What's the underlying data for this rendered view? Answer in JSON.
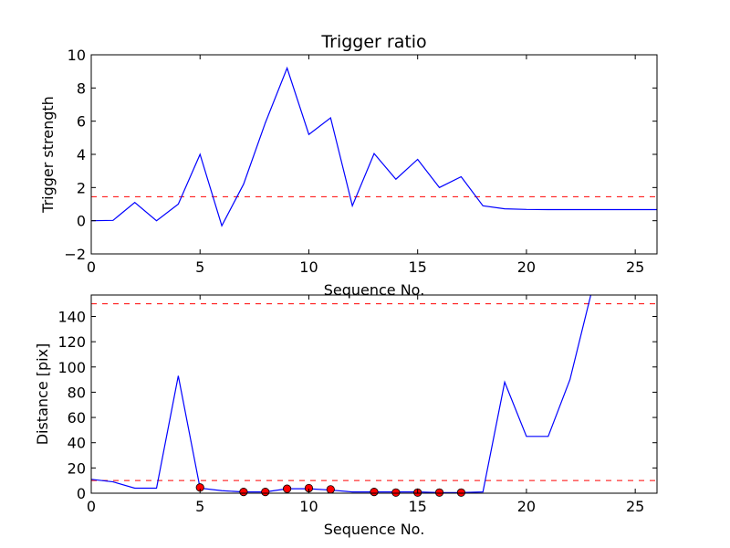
{
  "chart_data": [
    {
      "type": "line",
      "title": "Trigger ratio",
      "xlabel": "Sequence No.",
      "ylabel": "Trigger strength",
      "xlim": [
        0,
        26
      ],
      "ylim": [
        -2,
        10
      ],
      "xticks": [
        0,
        5,
        10,
        15,
        20,
        25
      ],
      "yticks": [
        -2,
        0,
        2,
        4,
        6,
        8,
        10
      ],
      "grid": false,
      "series": [
        {
          "color": "#0000ff",
          "style": "solid",
          "x": [
            0,
            1,
            2,
            3,
            4,
            5,
            6,
            7,
            8,
            9,
            10,
            11,
            12,
            13,
            14,
            15,
            16,
            17,
            18,
            19,
            20,
            21,
            22,
            23,
            24,
            25,
            26
          ],
          "y": [
            0.0,
            0.02,
            1.1,
            0.0,
            1.0,
            4.0,
            -0.3,
            2.2,
            5.9,
            9.2,
            5.2,
            6.2,
            0.9,
            4.05,
            2.5,
            3.7,
            2.0,
            2.65,
            0.9,
            0.72,
            0.68,
            0.67,
            0.67,
            0.67,
            0.67,
            0.67,
            0.67
          ]
        }
      ],
      "hlines": [
        {
          "y": 1.45,
          "color": "#ff0000",
          "style": "dashed"
        }
      ]
    },
    {
      "type": "line",
      "title": "",
      "xlabel": "Sequence No.",
      "ylabel": "Distance [pix]",
      "xlim": [
        0,
        26
      ],
      "ylim": [
        0,
        157
      ],
      "xticks": [
        0,
        5,
        10,
        15,
        20,
        25
      ],
      "yticks": [
        0,
        20,
        40,
        60,
        80,
        100,
        120,
        140
      ],
      "grid": false,
      "series": [
        {
          "color": "#0000ff",
          "style": "solid",
          "x": [
            0,
            1,
            2,
            3,
            4,
            5,
            6,
            7,
            8,
            9,
            10,
            11,
            12,
            13,
            14,
            15,
            16,
            17,
            18,
            19,
            20,
            21,
            22,
            23
          ],
          "y": [
            11,
            9,
            4,
            4,
            93,
            4,
            2,
            1,
            1,
            3.5,
            3.5,
            2.5,
            1,
            1,
            1,
            1,
            0.5,
            0.5,
            1,
            88,
            45,
            45,
            90,
            160
          ]
        }
      ],
      "markers": {
        "color": "#ff0000",
        "x": [
          5,
          7,
          8,
          9,
          10,
          11,
          13,
          14,
          15,
          16,
          17
        ],
        "y": [
          4.5,
          1,
          1,
          3.5,
          4,
          3,
          1,
          0.5,
          0.5,
          0.5,
          0.5
        ]
      },
      "hlines": [
        {
          "y": 150,
          "color": "#ff0000",
          "style": "dashed"
        },
        {
          "y": 10,
          "color": "#ff0000",
          "style": "dashed"
        }
      ]
    }
  ]
}
